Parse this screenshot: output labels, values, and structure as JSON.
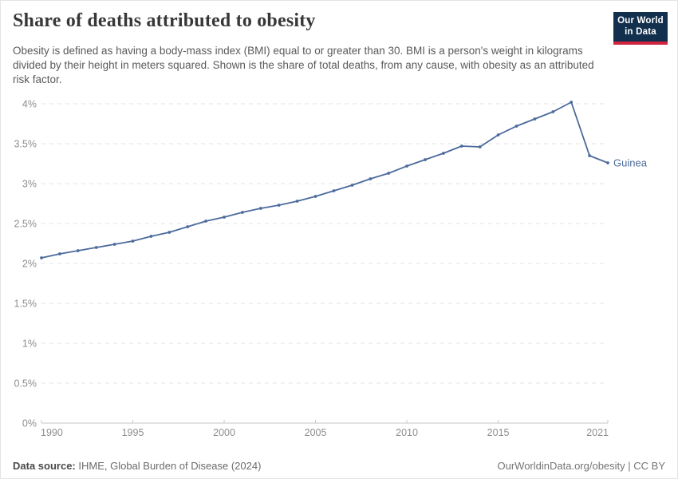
{
  "header": {
    "title": "Share of deaths attributed to obesity",
    "subtitle": "Obesity is defined as having a body-mass index (BMI) equal to or greater than 30. BMI is a person's weight in kilograms divided by their height in meters squared. Shown is the share of total deaths, from any cause, with obesity as an attributed risk factor.",
    "logo": {
      "line1": "Our World",
      "line2": "in Data"
    }
  },
  "chart_data": {
    "type": "line",
    "title": "Share of deaths attributed to obesity",
    "x": [
      1990,
      1991,
      1992,
      1993,
      1994,
      1995,
      1996,
      1997,
      1998,
      1999,
      2000,
      2001,
      2002,
      2003,
      2004,
      2005,
      2006,
      2007,
      2008,
      2009,
      2010,
      2011,
      2012,
      2013,
      2014,
      2015,
      2016,
      2017,
      2018,
      2019,
      2020,
      2021
    ],
    "series": [
      {
        "name": "Guinea",
        "unit": "%",
        "values": [
          2.07,
          2.12,
          2.16,
          2.2,
          2.24,
          2.28,
          2.34,
          2.39,
          2.46,
          2.53,
          2.58,
          2.64,
          2.69,
          2.73,
          2.78,
          2.84,
          2.91,
          2.98,
          3.06,
          3.13,
          3.22,
          3.3,
          3.38,
          3.47,
          3.46,
          3.61,
          3.72,
          3.81,
          3.9,
          4.02,
          3.35,
          3.26
        ]
      }
    ],
    "xlim": [
      1990,
      2021
    ],
    "ylim": [
      0,
      4
    ],
    "x_ticks": [
      {
        "value": 1990,
        "label": "1990"
      },
      {
        "value": 1995,
        "label": "1995"
      },
      {
        "value": 2000,
        "label": "2000"
      },
      {
        "value": 2005,
        "label": "2005"
      },
      {
        "value": 2010,
        "label": "2010"
      },
      {
        "value": 2015,
        "label": "2015"
      },
      {
        "value": 2021,
        "label": "2021"
      }
    ],
    "y_ticks": [
      {
        "value": 0,
        "label": "0%"
      },
      {
        "value": 0.5,
        "label": "0.5%"
      },
      {
        "value": 1,
        "label": "1%"
      },
      {
        "value": 1.5,
        "label": "1.5%"
      },
      {
        "value": 2,
        "label": "2%"
      },
      {
        "value": 2.5,
        "label": "2.5%"
      },
      {
        "value": 3,
        "label": "3%"
      },
      {
        "value": 3.5,
        "label": "3.5%"
      },
      {
        "value": 4,
        "label": "4%"
      }
    ],
    "grid": "horizontal-dashed",
    "legend_position": "end-of-line-label",
    "end_label": "Guinea"
  },
  "footer": {
    "datasource_label": "Data source:",
    "datasource_text": " IHME, Global Burden of Disease (2024)",
    "credit": "OurWorldinData.org/obesity | CC BY"
  },
  "colors": {
    "line": "#4C6A9C",
    "end_label": "#4C6A9C",
    "title_text": "#373737",
    "subtitle_text": "#5a5a5a",
    "axis_text": "#8e8e8e",
    "gridline": "#e3e3e3",
    "axis_line": "#c6c6c6",
    "logo_bg": "#12304e",
    "logo_stripe": "#d1253f"
  }
}
